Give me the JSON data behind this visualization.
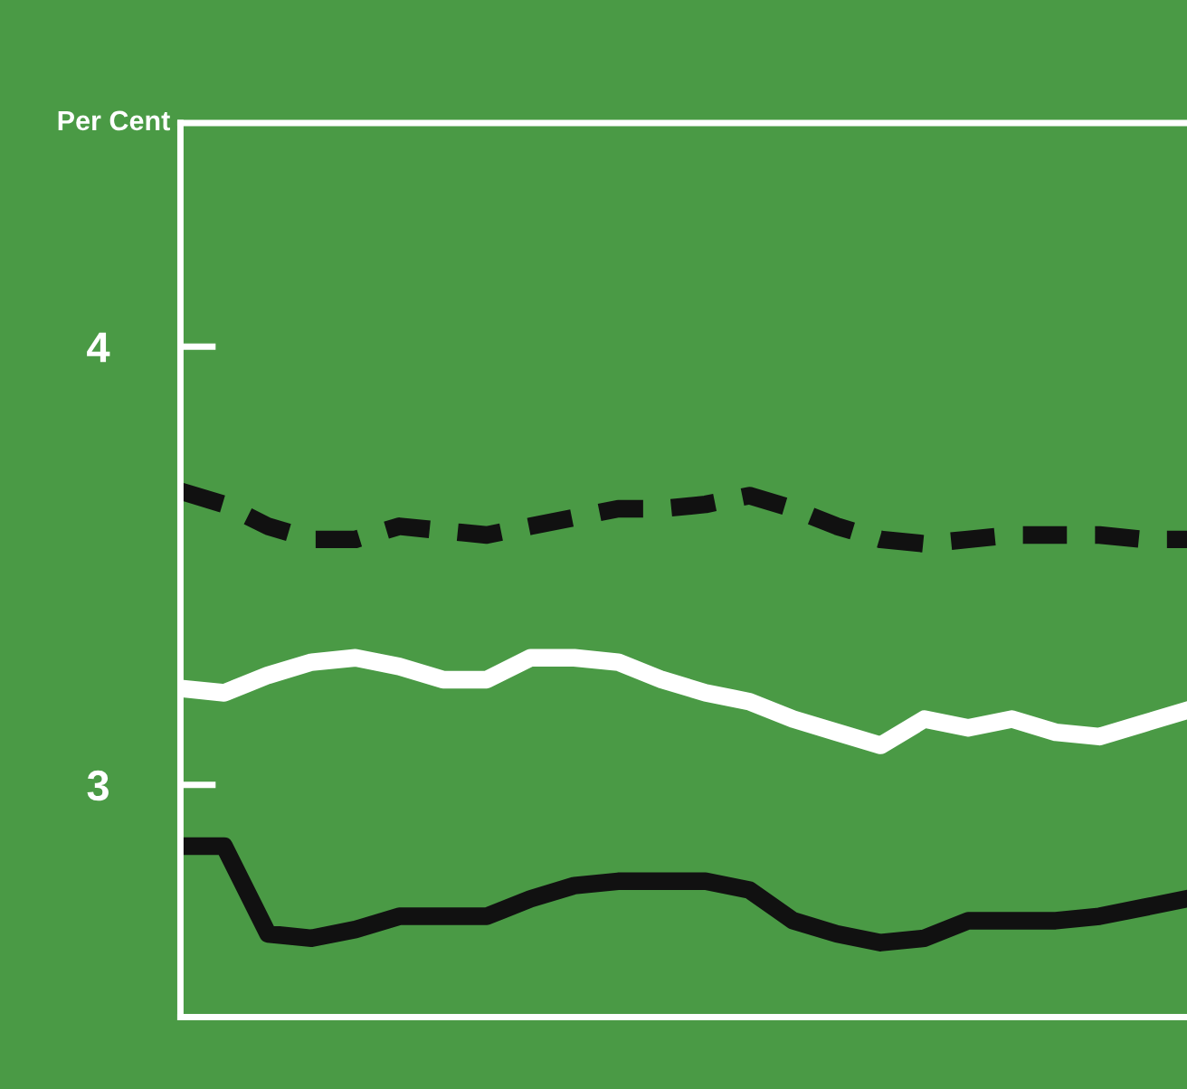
{
  "chart_data": {
    "type": "line",
    "ylabel": "Per Cent",
    "categories": [
      null,
      null,
      null,
      null,
      null,
      null,
      null,
      null,
      null,
      null,
      null,
      null,
      null,
      null,
      null,
      null,
      null,
      null,
      null,
      null,
      null,
      null,
      null,
      null
    ],
    "series": [
      {
        "color": "#111111",
        "line_style": "dashed",
        "values": [
          3.67,
          3.64,
          3.59,
          3.56,
          3.56,
          3.59,
          3.58,
          3.57,
          3.59,
          3.61,
          3.63,
          3.63,
          3.64,
          3.66,
          3.63,
          3.59,
          3.56,
          3.55,
          3.56,
          3.57,
          3.57,
          3.57,
          3.56,
          3.56
        ]
      },
      {
        "color": "#ffffff",
        "line_style": "solid",
        "values": [
          3.22,
          3.21,
          3.25,
          3.28,
          3.29,
          3.27,
          3.24,
          3.24,
          3.29,
          3.29,
          3.28,
          3.24,
          3.21,
          3.19,
          3.15,
          3.12,
          3.09,
          3.15,
          3.13,
          3.15,
          3.12,
          3.11,
          3.14,
          3.17
        ]
      },
      {
        "color": "#111111",
        "line_style": "solid",
        "values": [
          2.86,
          2.86,
          2.66,
          2.65,
          2.67,
          2.7,
          2.7,
          2.7,
          2.74,
          2.77,
          2.78,
          2.78,
          2.78,
          2.76,
          2.69,
          2.66,
          2.64,
          2.65,
          2.69,
          2.69,
          2.69,
          2.7,
          2.72,
          2.74
        ]
      }
    ],
    "ylim": [
      2.47,
      4.51
    ],
    "yticks": [
      3,
      4
    ],
    "grid": false,
    "legend": false,
    "tick_labels": "y",
    "marker": "none"
  }
}
